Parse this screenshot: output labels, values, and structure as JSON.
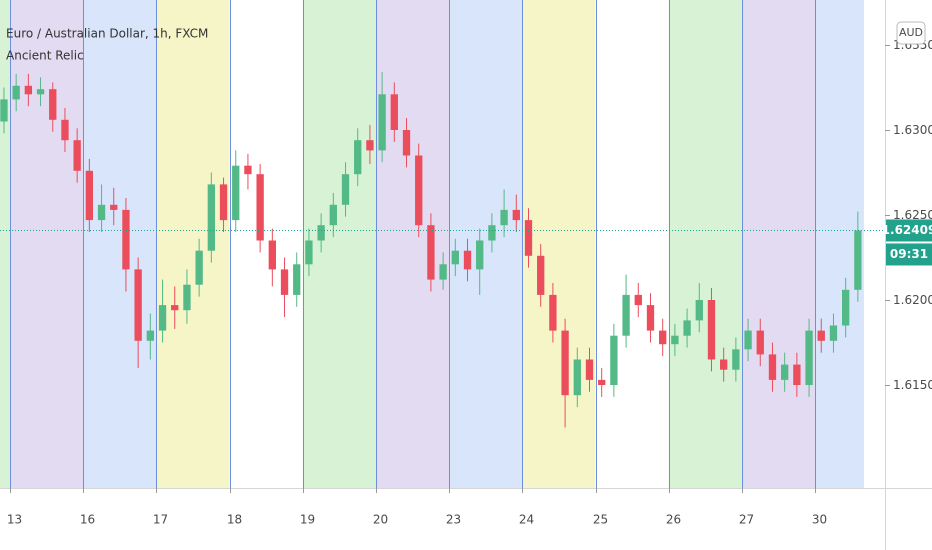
{
  "chart_data": {
    "type": "candlestick",
    "title": "Euro / Australian Dollar, 1h, FXCM",
    "subtitle": "Ancient Relic",
    "currency": "AUD",
    "countdown": "09:31",
    "last_price": 1.62409,
    "x": [
      -2,
      2,
      6,
      10,
      14,
      18,
      22,
      26,
      30,
      34,
      38,
      42,
      46,
      50,
      54,
      58,
      62,
      66,
      70,
      74,
      78,
      82,
      86,
      90,
      94,
      98,
      102,
      106,
      110,
      114,
      118,
      122,
      126,
      130,
      134,
      138,
      142,
      146,
      150,
      154,
      158,
      162,
      166,
      170,
      174,
      178,
      182,
      186,
      190,
      194,
      198,
      202,
      206,
      210,
      214,
      218,
      222,
      226,
      230,
      234,
      238,
      242,
      246,
      250,
      254,
      258,
      262,
      266,
      270,
      274,
      278
    ],
    "open": [
      1.6305,
      1.6318,
      1.6326,
      1.6321,
      1.6324,
      1.6306,
      1.6294,
      1.6276,
      1.6247,
      1.6256,
      1.6253,
      1.6218,
      1.6176,
      1.6182,
      1.6197,
      1.6194,
      1.6209,
      1.6229,
      1.6268,
      1.6247,
      1.6279,
      1.6274,
      1.6235,
      1.6218,
      1.6203,
      1.6221,
      1.6235,
      1.6244,
      1.6256,
      1.6274,
      1.6294,
      1.6288,
      1.6321,
      1.63,
      1.6285,
      1.6244,
      1.6212,
      1.6221,
      1.6229,
      1.6218,
      1.6235,
      1.6244,
      1.6253,
      1.6247,
      1.6226,
      1.6203,
      1.6182,
      1.6144,
      1.6165,
      1.6153,
      1.615,
      1.6179,
      1.6203,
      1.6197,
      1.6182,
      1.6174,
      1.6179,
      1.6188,
      1.62,
      1.6165,
      1.6159,
      1.6171,
      1.6182,
      1.6168,
      1.6153,
      1.6162,
      1.615,
      1.6182,
      1.6176,
      1.6185,
      1.6206
    ],
    "high": [
      1.6325,
      1.6333,
      1.6333,
      1.6331,
      1.6328,
      1.6313,
      1.6301,
      1.6283,
      1.6268,
      1.6266,
      1.626,
      1.6225,
      1.6192,
      1.6212,
      1.6208,
      1.6218,
      1.6236,
      1.6275,
      1.6272,
      1.6288,
      1.6286,
      1.628,
      1.6242,
      1.6225,
      1.6228,
      1.6242,
      1.6251,
      1.6263,
      1.6281,
      1.6301,
      1.6303,
      1.6334,
      1.6328,
      1.6307,
      1.6292,
      1.6251,
      1.6228,
      1.6236,
      1.6236,
      1.6242,
      1.6251,
      1.6265,
      1.6262,
      1.6254,
      1.6233,
      1.621,
      1.6189,
      1.6172,
      1.6172,
      1.616,
      1.6186,
      1.6215,
      1.621,
      1.6204,
      1.6189,
      1.6186,
      1.6195,
      1.621,
      1.6207,
      1.6172,
      1.6178,
      1.6189,
      1.6189,
      1.6175,
      1.6169,
      1.6169,
      1.6189,
      1.6189,
      1.6192,
      1.6213,
      1.6252
    ],
    "low": [
      1.6298,
      1.6311,
      1.6314,
      1.6314,
      1.6299,
      1.6287,
      1.6269,
      1.624,
      1.624,
      1.6244,
      1.6205,
      1.616,
      1.6165,
      1.6175,
      1.6183,
      1.6186,
      1.6202,
      1.6222,
      1.624,
      1.624,
      1.6265,
      1.6228,
      1.6208,
      1.619,
      1.6196,
      1.6214,
      1.6228,
      1.6237,
      1.6249,
      1.6267,
      1.628,
      1.6281,
      1.6293,
      1.6278,
      1.6237,
      1.6205,
      1.6206,
      1.6214,
      1.6211,
      1.6203,
      1.6228,
      1.6237,
      1.624,
      1.6219,
      1.6196,
      1.6175,
      1.6125,
      1.6137,
      1.6146,
      1.6143,
      1.6143,
      1.6172,
      1.619,
      1.6175,
      1.6167,
      1.6167,
      1.6172,
      1.6181,
      1.6158,
      1.6152,
      1.6152,
      1.6164,
      1.6161,
      1.6146,
      1.6146,
      1.6143,
      1.6143,
      1.6169,
      1.6169,
      1.6178,
      1.6199
    ],
    "close": [
      1.6318,
      1.6326,
      1.6321,
      1.6324,
      1.6306,
      1.6294,
      1.6276,
      1.6247,
      1.6256,
      1.6253,
      1.6218,
      1.6176,
      1.6182,
      1.6197,
      1.6194,
      1.6209,
      1.6229,
      1.6268,
      1.6247,
      1.6279,
      1.6274,
      1.6235,
      1.6218,
      1.6203,
      1.6221,
      1.6235,
      1.6244,
      1.6256,
      1.6274,
      1.6294,
      1.6288,
      1.6321,
      1.63,
      1.6285,
      1.6244,
      1.6212,
      1.6221,
      1.6229,
      1.6218,
      1.6235,
      1.6244,
      1.6253,
      1.6247,
      1.6226,
      1.6203,
      1.6182,
      1.6144,
      1.6165,
      1.6153,
      1.615,
      1.6179,
      1.6203,
      1.6197,
      1.6182,
      1.6174,
      1.6179,
      1.6188,
      1.62,
      1.6165,
      1.6159,
      1.6171,
      1.6182,
      1.6168,
      1.6153,
      1.6162,
      1.615,
      1.6182,
      1.6176,
      1.6185,
      1.6206,
      1.62409
    ],
    "xlim": [
      -3.3,
      286.9
    ],
    "xticks": [
      {
        "value": 0,
        "label": "13"
      },
      {
        "value": 24,
        "label": "16"
      },
      {
        "value": 48,
        "label": "17"
      },
      {
        "value": 72,
        "label": "18"
      },
      {
        "value": 96,
        "label": "19"
      },
      {
        "value": 120,
        "label": "20"
      },
      {
        "value": 144,
        "label": "23"
      },
      {
        "value": 168,
        "label": "24"
      },
      {
        "value": 192,
        "label": "25"
      },
      {
        "value": 216,
        "label": "26"
      },
      {
        "value": 240,
        "label": "27"
      },
      {
        "value": 264,
        "label": "30"
      }
    ],
    "ylim": [
      1.608941,
      1.637647
    ],
    "yticks": [
      {
        "value": 1.615,
        "label": "1.61500"
      },
      {
        "value": 1.62,
        "label": "1.62000"
      },
      {
        "value": 1.625,
        "label": "1.62500"
      },
      {
        "value": 1.63,
        "label": "1.63000"
      },
      {
        "value": 1.635,
        "label": "1.63500"
      }
    ],
    "up_color": "#53b987",
    "down_color": "#eb4d5c",
    "last_price_color": "#22a18c",
    "band_colors": [
      "#d8f2d6",
      "#e2dbf1",
      "#d8e5fb",
      "#f6f5c8",
      "#ffffff",
      "#d8f2d6",
      "#e2dbf1",
      "#d8e5fb",
      "#f6f5c8",
      "#ffffff",
      "#d8f2d6",
      "#e2dbf1",
      "#d8e5fb"
    ],
    "band_separator_color": "#6d8fe0"
  }
}
